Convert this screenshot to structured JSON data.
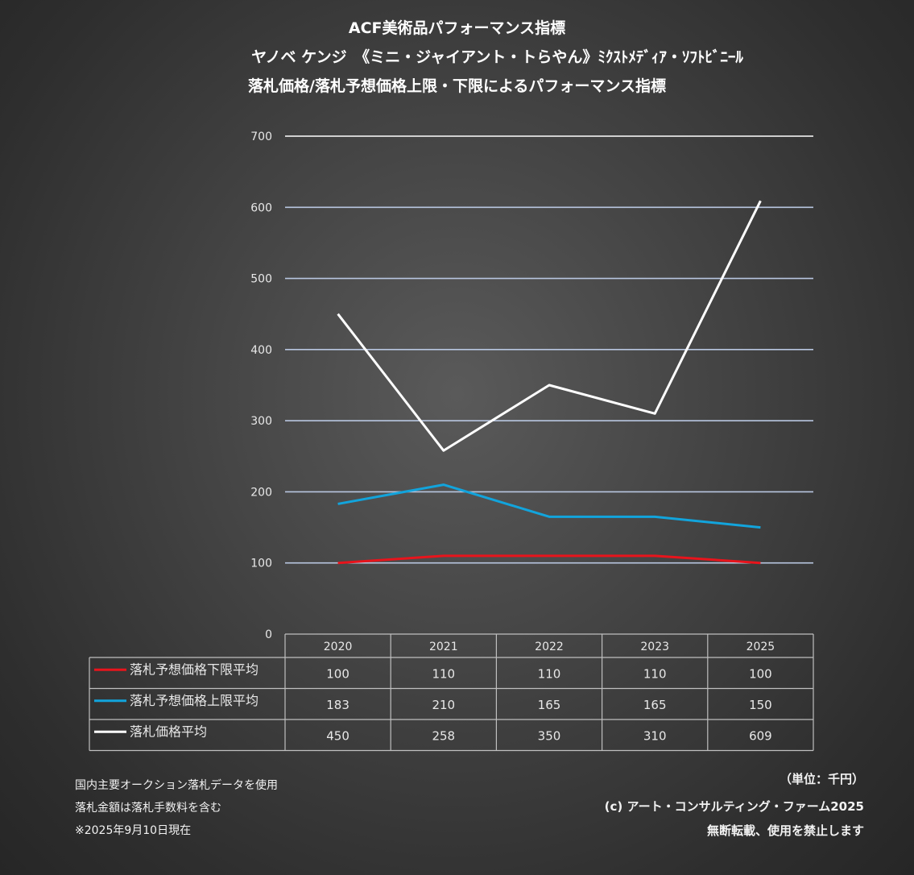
{
  "titles": {
    "line1": "ACF美術品パフォーマンス指標",
    "line2": "ヤノベ ケンジ　《ミニ・ジャイアント・トらやん》ﾐｸｽﾄﾒﾃﾞｨｱ・ｿﾌﾄﾋﾞﾆｰﾙ",
    "line3": "落札価格/落札予想価格上限・下限によるパフォーマンス指標"
  },
  "chart_data": {
    "type": "line",
    "categories": [
      "2020",
      "2021",
      "2022",
      "2023",
      "2025"
    ],
    "ylim": [
      0,
      700
    ],
    "yticks": [
      0,
      100,
      200,
      300,
      400,
      500,
      600,
      700
    ],
    "grid": true,
    "legend": "data-table-left",
    "series": [
      {
        "name": "落札予想価格下限平均",
        "values": [
          100,
          110,
          110,
          110,
          100
        ],
        "color": "#e8141c"
      },
      {
        "name": "落札予想価格上限平均",
        "values": [
          183,
          210,
          165,
          165,
          150
        ],
        "color": "#12a4dc"
      },
      {
        "name": "落札価格平均",
        "values": [
          450,
          258,
          350,
          310,
          609
        ],
        "color": "#ffffff"
      }
    ]
  },
  "notes": {
    "left": [
      "国内主要オークション落札データを使用",
      "落札金額は落札手数料を含む",
      "※2025年9月10日現在"
    ],
    "unit": "（単位：千円）",
    "copyright": "(c) アート・コンサルティング・ファーム2025",
    "rights": "無断転載、使用を禁止します"
  }
}
